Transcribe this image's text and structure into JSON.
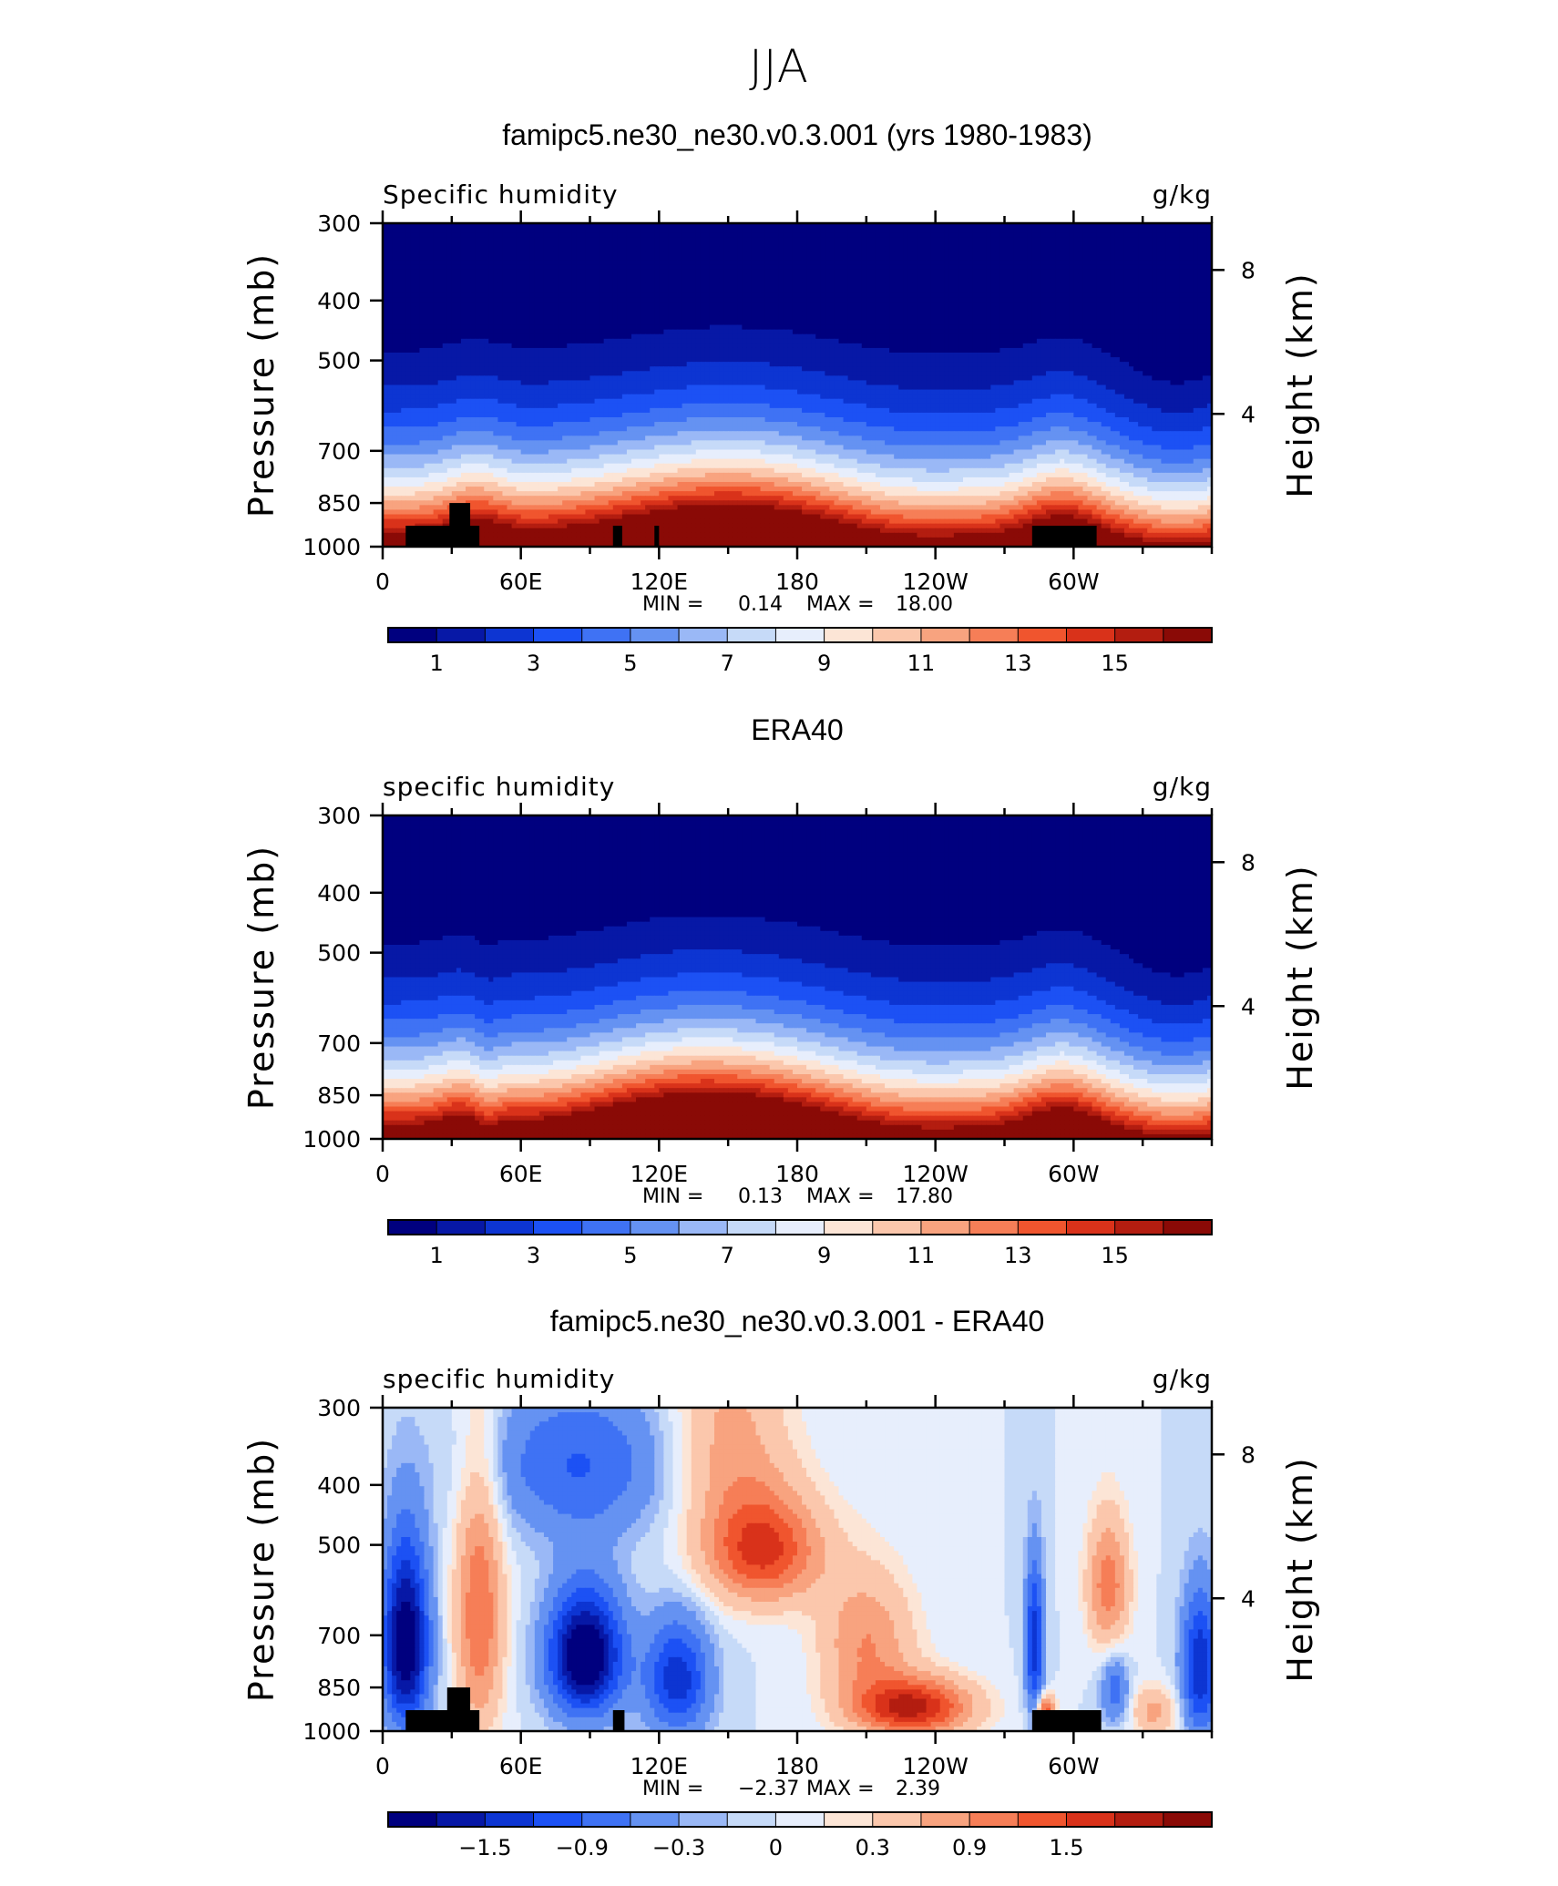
{
  "page": {
    "title": "JJA"
  },
  "panels": [
    {
      "title": "famipc5.ne30_ne30.v0.3.001 (yrs 1980-1983)",
      "variable": "Specific humidity",
      "units": "g/kg",
      "stats": {
        "min_label": "MIN =",
        "min": "0.14",
        "max_label": "MAX =",
        "max": "18.00"
      }
    },
    {
      "title": "ERA40",
      "variable": "specific humidity",
      "units": "g/kg",
      "stats": {
        "min_label": "MIN =",
        "min": "0.13",
        "max_label": "MAX =",
        "max": "17.80"
      }
    },
    {
      "title": "famipc5.ne30_ne30.v0.3.001 - ERA40",
      "variable": "specific humidity",
      "units": "g/kg",
      "stats": {
        "min_label": "MIN =",
        "min": "−2.37",
        "max_label": "MAX =",
        "max": "2.39"
      }
    }
  ],
  "chart_data": [
    {
      "type": "heatmap",
      "title": "famipc5.ne30_ne30.v0.3.001 (yrs 1980-1983)",
      "subtitle": "Specific humidity",
      "units": "g/kg",
      "xlabel": "",
      "ylabel": "Pressure (mb)",
      "ylabel_right": "Height (km)",
      "x_ticks": [
        "0",
        "60E",
        "120E",
        "180",
        "120W",
        "60W"
      ],
      "xlim": [
        0,
        360
      ],
      "y_ticks": [
        300,
        400,
        500,
        700,
        850,
        1000
      ],
      "ylim": [
        1000,
        300
      ],
      "y_scale": "log",
      "y_right_ticks": [
        8,
        4
      ],
      "min": 0.14,
      "max": 18.0,
      "colorbar": {
        "colors": [
          "#00007f",
          "#0718a6",
          "#0d35d2",
          "#1c51f4",
          "#3f72f4",
          "#6592f2",
          "#9ab8f6",
          "#c6daf8",
          "#e7eefc",
          "#fce5d6",
          "#fbc7ac",
          "#f8a37f",
          "#f67e57",
          "#f0552e",
          "#d9321a",
          "#b31d10",
          "#8a0a06"
        ],
        "tick_labels": [
          "1",
          "3",
          "5",
          "7",
          "9",
          "11",
          "13",
          "15"
        ]
      },
      "topography_pressure": 850
    },
    {
      "type": "heatmap",
      "title": "ERA40",
      "subtitle": "specific humidity",
      "units": "g/kg",
      "xlabel": "",
      "ylabel": "Pressure (mb)",
      "ylabel_right": "Height (km)",
      "x_ticks": [
        "0",
        "60E",
        "120E",
        "180",
        "120W",
        "60W"
      ],
      "xlim": [
        0,
        360
      ],
      "y_ticks": [
        300,
        400,
        500,
        700,
        850,
        1000
      ],
      "ylim": [
        1000,
        300
      ],
      "y_scale": "log",
      "y_right_ticks": [
        8,
        4
      ],
      "min": 0.13,
      "max": 17.8,
      "colorbar": {
        "colors": [
          "#00007f",
          "#0718a6",
          "#0d35d2",
          "#1c51f4",
          "#3f72f4",
          "#6592f2",
          "#9ab8f6",
          "#c6daf8",
          "#e7eefc",
          "#fce5d6",
          "#fbc7ac",
          "#f8a37f",
          "#f67e57",
          "#f0552e",
          "#d9321a",
          "#b31d10",
          "#8a0a06"
        ],
        "tick_labels": [
          "1",
          "3",
          "5",
          "7",
          "9",
          "11",
          "13",
          "15"
        ]
      }
    },
    {
      "type": "heatmap",
      "title": "famipc5.ne30_ne30.v0.3.001 - ERA40",
      "subtitle": "specific humidity",
      "units": "g/kg",
      "xlabel": "",
      "ylabel": "Pressure (mb)",
      "ylabel_right": "Height (km)",
      "x_ticks": [
        "0",
        "60E",
        "120E",
        "180",
        "120W",
        "60W"
      ],
      "xlim": [
        0,
        360
      ],
      "y_ticks": [
        300,
        400,
        500,
        700,
        850,
        1000
      ],
      "ylim": [
        1000,
        300
      ],
      "y_scale": "log",
      "y_right_ticks": [
        8,
        4
      ],
      "min": -2.37,
      "max": 2.39,
      "colorbar": {
        "colors": [
          "#00007f",
          "#0718a6",
          "#0d35d2",
          "#1c51f4",
          "#3f72f4",
          "#6592f2",
          "#9ab8f6",
          "#c6daf8",
          "#e7eefc",
          "#fce5d6",
          "#fbc7ac",
          "#f8a37f",
          "#f67e57",
          "#f0552e",
          "#d9321a",
          "#b31d10",
          "#8a0a06"
        ],
        "tick_labels": [
          "−1.5",
          "−0.9",
          "−0.3",
          "0",
          "0.3",
          "0.9",
          "1.5"
        ]
      },
      "topography_pressure": 850
    }
  ]
}
